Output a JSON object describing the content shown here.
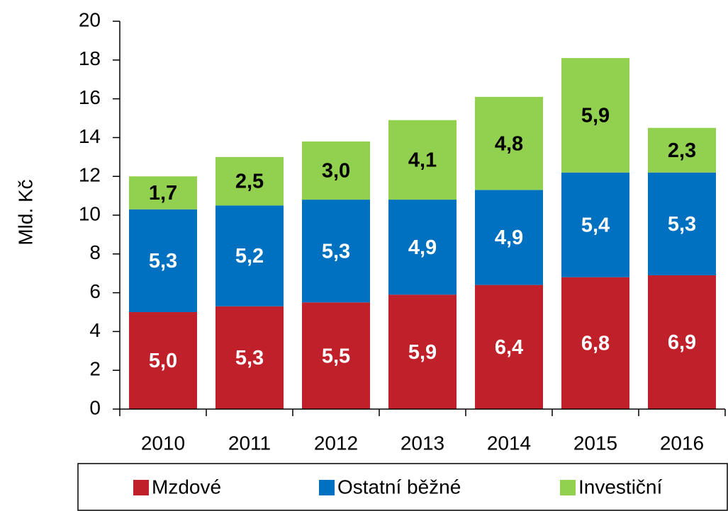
{
  "chart_data": {
    "type": "stacked_bar",
    "y_label": "Mld. Kč",
    "categories": [
      "2010",
      "2011",
      "2012",
      "2013",
      "2014",
      "2015",
      "2016"
    ],
    "series": [
      {
        "name": "Mzdové",
        "color": "#c0202a",
        "label_color": "#ffffff",
        "values": [
          5.0,
          5.3,
          5.5,
          5.9,
          6.4,
          6.8,
          6.9
        ],
        "value_labels": [
          "5,0",
          "5,3",
          "5,5",
          "5,9",
          "6,4",
          "6,8",
          "6,9"
        ]
      },
      {
        "name": "Ostatní běžné",
        "color": "#0070c0",
        "label_color": "#ffffff",
        "values": [
          5.3,
          5.2,
          5.3,
          4.9,
          4.9,
          5.4,
          5.3
        ],
        "value_labels": [
          "5,3",
          "5,2",
          "5,3",
          "4,9",
          "4,9",
          "5,4",
          "5,3"
        ]
      },
      {
        "name": "Investiční",
        "color": "#92d050",
        "label_color": "#000000",
        "values": [
          1.7,
          2.5,
          3.0,
          4.1,
          4.8,
          5.9,
          2.3
        ],
        "value_labels": [
          "1,7",
          "2,5",
          "3,0",
          "4,1",
          "4,8",
          "5,9",
          "2,3"
        ]
      }
    ],
    "ylim": [
      0,
      20
    ],
    "yticks": [
      0,
      2,
      4,
      6,
      8,
      10,
      12,
      14,
      16,
      18,
      20
    ],
    "legend": "bottom"
  }
}
